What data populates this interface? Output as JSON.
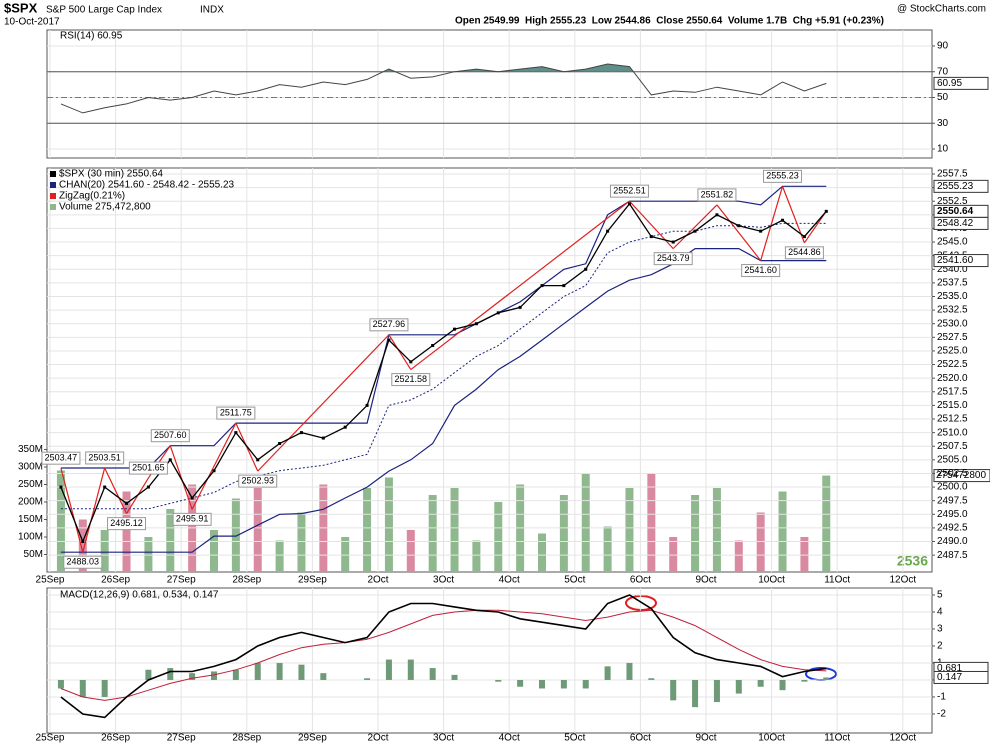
{
  "header": {
    "symbol": "$SPX",
    "name": "S&P 500 Large Cap Index",
    "exchange": "INDX",
    "date": "10-Oct-2017",
    "quote": "Open 2549.99  High 2555.23  Low 2544.86  Close 2550.64  Volume 1.7B  Chg +5.91 (+0.23%)",
    "credit": "@ StockCharts.com",
    "watermark": "2536"
  },
  "chart_data": {
    "type": "stock",
    "categories": [
      "25Sep",
      null,
      null,
      "26Sep",
      null,
      null,
      "27Sep",
      null,
      null,
      "28Sep",
      null,
      null,
      "29Sep",
      null,
      null,
      "2Oct",
      null,
      null,
      "3Oct",
      null,
      null,
      "4Oct",
      null,
      null,
      "5Oct",
      null,
      null,
      "6Oct",
      null,
      null,
      "9Oct",
      null,
      null,
      "10Oct",
      null,
      null,
      "11Oct",
      null,
      null,
      "12Oct",
      null,
      null
    ],
    "rsi": {
      "label": "RSI(14) 60.95",
      "color": "#444444",
      "fill": "#5f8f88",
      "ylim": [
        3,
        102.4
      ],
      "yticks": [
        10,
        30,
        50,
        70,
        90
      ],
      "bands": [
        30,
        70
      ],
      "midline": 50,
      "values": [
        45,
        38,
        42,
        45,
        50,
        48,
        50,
        55,
        52,
        55,
        60,
        58,
        62,
        60,
        64,
        72,
        65,
        66,
        70,
        72,
        70,
        72,
        74,
        70,
        72,
        76,
        74,
        52,
        55,
        54,
        58,
        55,
        52,
        62,
        55,
        60.95,
        null,
        null,
        null,
        null,
        null,
        null
      ],
      "flag": {
        "value": 60.95,
        "label": "60.95"
      }
    },
    "price": {
      "legend": "$SPX (30 min) 2550.64",
      "color": "#000000",
      "ylim": [
        2484.4,
        2558.6
      ],
      "yticks": [
        2487.5,
        {
          "value": 2490,
          "label": "2490.0"
        },
        2492.5,
        {
          "value": 2495,
          "label": "2495.0"
        },
        2497.5,
        {
          "value": 2500,
          "label": "2500.0"
        },
        2502.5,
        {
          "value": 2505,
          "label": "2505.0"
        },
        2507.5,
        {
          "value": 2510,
          "label": "2510.0"
        },
        2512.5,
        {
          "value": 2515,
          "label": "2515.0"
        },
        2517.5,
        {
          "value": 2520,
          "label": "2520.0"
        },
        2522.5,
        {
          "value": 2525,
          "label": "2525.0"
        },
        2527.5,
        {
          "value": 2530,
          "label": "2530.0"
        },
        2532.5,
        {
          "value": 2535,
          "label": "2535.0"
        },
        2537.5,
        {
          "value": 2540,
          "label": "2540.0"
        },
        2542.5,
        {
          "value": 2545,
          "label": "2545.0"
        },
        2547.5,
        {
          "value": 2550,
          "label": "2550.0"
        },
        2552.5,
        {
          "value": 2555,
          "label": "2555.0"
        },
        2557.5
      ],
      "values": [
        2500,
        2490,
        2500,
        2497,
        2500,
        2505,
        2498,
        2503,
        2510,
        2505,
        2508,
        2510,
        2509,
        2511,
        2515,
        2527,
        2523,
        2526,
        2529,
        2530,
        2532,
        2533,
        2537,
        2537,
        2540,
        2547,
        2552,
        2546,
        2545,
        2547,
        2550,
        2548,
        2547,
        2549,
        2546,
        2550.64,
        null,
        null,
        null,
        null,
        null,
        null
      ],
      "channel": {
        "name": "CHAN(20) 2541.60 - 2548.42 - 2555.23",
        "color": "#1a237e",
        "upper": [
          2503.5,
          2503.5,
          2503.5,
          2503.5,
          2503.5,
          2507.6,
          2507.6,
          2507.6,
          2511.75,
          2511.75,
          2511.75,
          2511.75,
          2511.75,
          2511.75,
          2511.75,
          2527.96,
          2527.96,
          2527.96,
          2527.96,
          2530,
          2532,
          2534,
          2537,
          2540,
          2541,
          2550,
          2552.51,
          2552.51,
          2552.51,
          2552.51,
          2552.51,
          2552.51,
          2551.82,
          2555.23,
          2555.23,
          2555.23,
          null,
          null,
          null,
          null,
          null,
          null
        ],
        "middle": [
          2496,
          2496,
          2496,
          2496,
          2496,
          2497,
          2498,
          2499,
          2501,
          2502,
          2503,
          2503.5,
          2504,
          2505,
          2506,
          2515,
          2516,
          2518,
          2521,
          2524,
          2526,
          2529,
          2532,
          2535,
          2537,
          2543,
          2545,
          2546,
          2547,
          2547,
          2548,
          2548,
          2547.7,
          2548.42,
          2548.42,
          2548.42,
          null,
          null,
          null,
          null,
          null,
          null
        ],
        "lower": [
          2488.03,
          2488.03,
          2488.03,
          2488.03,
          2488.03,
          2488.03,
          2488.03,
          2491,
          2491,
          2493,
          2495,
          2495.12,
          2495.91,
          2498,
          2500,
          2502.93,
          2505,
          2508,
          2515,
          2518,
          2521.58,
          2524,
          2527,
          2530,
          2533,
          2536,
          2538,
          2539,
          2541,
          2543.79,
          2543.79,
          2543.79,
          2541.6,
          2541.6,
          2541.6,
          2541.6,
          null,
          null,
          null,
          null,
          null,
          null
        ]
      },
      "zigzag": {
        "name": "ZigZag(0.21%)",
        "color": "#e02020",
        "values": [
          2503.47,
          2488.03,
          2503.51,
          2495.12,
          2501.65,
          2507.6,
          2495.91,
          null,
          2511.75,
          2502.93,
          null,
          null,
          null,
          null,
          null,
          2527.96,
          2521.58,
          null,
          null,
          null,
          null,
          null,
          null,
          null,
          null,
          null,
          2552.51,
          null,
          2543.79,
          null,
          2551.82,
          null,
          2541.6,
          2555.23,
          2544.86,
          2550.64,
          null,
          null,
          null,
          null,
          null,
          null
        ],
        "value_labels": [
          "2503.47",
          "2488.03",
          "2503.51",
          "2495.12",
          "2501.65",
          "2507.60",
          "2495.91",
          null,
          "2511.75",
          "2502.93",
          null,
          null,
          null,
          null,
          null,
          "2527.96",
          "2521.58",
          null,
          null,
          null,
          null,
          null,
          null,
          null,
          null,
          null,
          "2552.51",
          null,
          "2543.79",
          null,
          "2551.82",
          null,
          "2541.60",
          "2555.23",
          "2544.86",
          null,
          null,
          null,
          null,
          null,
          null,
          null
        ]
      },
      "flags": [
        {
          "value": 2555.23,
          "label": "2555.23"
        },
        {
          "value": 2550.64,
          "label": "2550.64"
        },
        {
          "value": 2548.42,
          "label": "2548.42"
        },
        {
          "value": 2541.6,
          "label": "2541.60"
        }
      ]
    },
    "volume": {
      "name": "Volume 275,472,800",
      "up_color": "#8fb88f",
      "down_color": "#d98aa0",
      "ylim": [
        0,
        360
      ],
      "yticks": [
        {
          "value": 50,
          "label": "50M"
        },
        {
          "value": 100,
          "label": "100M"
        },
        {
          "value": 150,
          "label": "150M"
        },
        {
          "value": 200,
          "label": "200M"
        },
        {
          "value": 250,
          "label": "250M"
        },
        {
          "value": 300,
          "label": "300M"
        },
        {
          "value": 350,
          "label": "350M"
        }
      ],
      "values": [
        290,
        150,
        120,
        230,
        100,
        180,
        250,
        120,
        210,
        240,
        90,
        170,
        250,
        100,
        240,
        270,
        120,
        220,
        240,
        90,
        200,
        250,
        110,
        220,
        280,
        130,
        240,
        280,
        100,
        220,
        240,
        90,
        170,
        230,
        100,
        275.4728,
        null,
        null,
        null,
        null,
        null,
        null
      ],
      "flag": {
        "value": 275.4728,
        "label": "275472800"
      }
    },
    "macd": {
      "label": "MACD(12,26,9) 0.681, 0.534, 0.147",
      "ylim": [
        -3.12,
        5.41
      ],
      "yticks": [
        -2,
        -1,
        0,
        1,
        2,
        3,
        4,
        5
      ],
      "macd": {
        "color": "#000000",
        "values": [
          -1,
          -2,
          -2.2,
          -1,
          0,
          0.5,
          0.5,
          0.8,
          1.2,
          2,
          2.5,
          2.8,
          2.5,
          2.2,
          2.5,
          4,
          4.5,
          4.5,
          4.3,
          4.1,
          4,
          3.6,
          3.4,
          3.2,
          3,
          4.5,
          5,
          4.2,
          2.5,
          1.6,
          1.2,
          1,
          0.8,
          0.2,
          0.5,
          0.681,
          null,
          null,
          null,
          null,
          null,
          null
        ]
      },
      "signal": {
        "color": "#c0203a",
        "values": [
          -0.5,
          -1,
          -1.2,
          -1,
          -0.6,
          -0.2,
          0.1,
          0.3,
          0.6,
          1,
          1.5,
          1.9,
          2.1,
          2.2,
          2.4,
          2.8,
          3.3,
          3.8,
          4,
          4.1,
          4.1,
          4,
          3.9,
          3.7,
          3.5,
          3.7,
          4,
          4.1,
          3.7,
          3.2,
          2.5,
          1.8,
          1.2,
          0.8,
          0.6,
          0.534,
          null,
          null,
          null,
          null,
          null,
          null
        ]
      },
      "histogram": {
        "color": "#6e9a78",
        "values": [
          -0.5,
          -1,
          -1,
          0,
          0.6,
          0.7,
          0.4,
          0.5,
          0.6,
          1,
          1,
          0.9,
          0.4,
          0,
          0.1,
          1.2,
          1.2,
          0.7,
          0.3,
          0,
          -0.1,
          -0.4,
          -0.5,
          -0.5,
          -0.5,
          0.8,
          1,
          0.1,
          -1.2,
          -1.6,
          -1.3,
          -0.8,
          -0.4,
          -0.6,
          -0.1,
          0.147,
          null,
          null,
          null,
          null,
          null,
          null
        ]
      },
      "flags": [
        {
          "value": 0.681,
          "label": "0.681"
        },
        {
          "value": 0.147,
          "label": "0.147"
        }
      ]
    }
  }
}
